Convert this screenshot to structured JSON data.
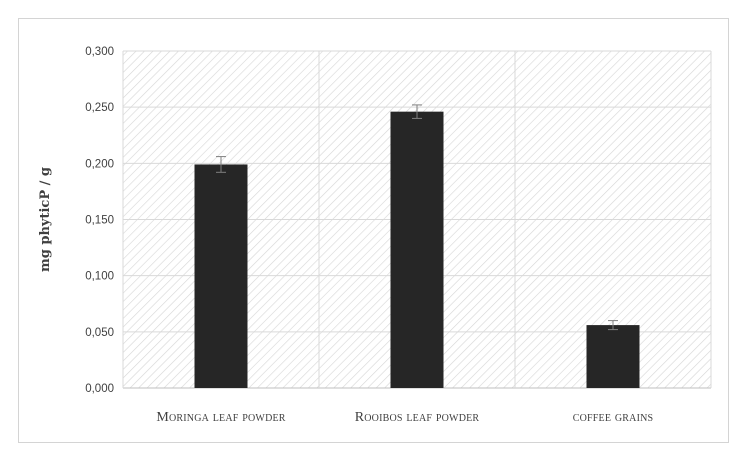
{
  "chart_data": {
    "type": "bar",
    "categories": [
      "Moringa leaf powder",
      "Rooibos leaf powder",
      "coffee grains"
    ],
    "series": [
      {
        "values": [
          0.199,
          0.246,
          0.056
        ],
        "errors": [
          0.007,
          0.006,
          0.004
        ]
      }
    ],
    "ylabel": "mg phyticP / g",
    "xlabel": "",
    "ylim": [
      0,
      0.3
    ],
    "yticks": [
      "0,000",
      "0,050",
      "0,100",
      "0,150",
      "0,200",
      "0,250",
      "0,300"
    ],
    "grid": true,
    "background_pattern": "diagonal-hatch",
    "bar_color": "#262626",
    "grid_color": "#d9d9d9",
    "axis_color": "#bfbfbf"
  }
}
